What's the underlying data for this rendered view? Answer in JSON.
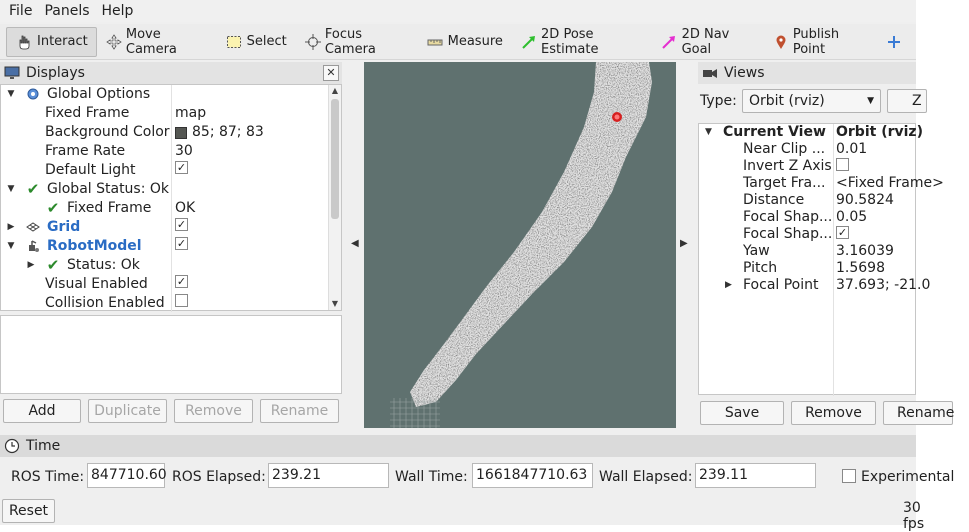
{
  "menu": [
    "File",
    "Panels",
    "Help"
  ],
  "toolbar": [
    {
      "label": "Interact",
      "icon": "hand-pointer-icon",
      "active": true
    },
    {
      "label": "Move Camera",
      "icon": "move-camera-icon",
      "active": false
    },
    {
      "label": "Select",
      "icon": "select-box-icon",
      "active": false
    },
    {
      "label": "Focus Camera",
      "icon": "focus-camera-icon",
      "active": false
    },
    {
      "label": "Measure",
      "icon": "ruler-icon",
      "active": false
    },
    {
      "label": "2D Pose Estimate",
      "icon": "green-arrow-icon",
      "active": false
    },
    {
      "label": "2D Nav Goal",
      "icon": "magenta-arrow-icon",
      "active": false
    },
    {
      "label": "Publish Point",
      "icon": "map-pin-icon",
      "active": false
    }
  ],
  "displays": {
    "title": "Displays",
    "rows": [
      {
        "name": "Global Options",
        "value": ""
      },
      {
        "name": "Fixed Frame",
        "value": "map"
      },
      {
        "name": "Background Color",
        "value": "85; 87; 83"
      },
      {
        "name": "Frame Rate",
        "value": "30"
      },
      {
        "name": "Default Light",
        "value": ""
      },
      {
        "name": "Global Status: Ok",
        "value": ""
      },
      {
        "name": "Fixed Frame",
        "value": "OK"
      },
      {
        "name": "Grid",
        "value": ""
      },
      {
        "name": "RobotModel",
        "value": ""
      },
      {
        "name": "Status: Ok",
        "value": ""
      },
      {
        "name": "Visual Enabled",
        "value": ""
      },
      {
        "name": "Collision Enabled",
        "value": ""
      }
    ],
    "buttons": [
      "Add",
      "Duplicate",
      "Remove",
      "Rename"
    ]
  },
  "views": {
    "title": "Views",
    "type_label": "Type:",
    "type_value": "Orbit (rviz)",
    "zero_label": "Z",
    "rows": [
      {
        "name": "Current View",
        "value": "Orbit (rviz)"
      },
      {
        "name": "Near Clip ...",
        "value": "0.01"
      },
      {
        "name": "Invert Z Axis",
        "value": ""
      },
      {
        "name": "Target Fra...",
        "value": "<Fixed Frame>"
      },
      {
        "name": "Distance",
        "value": "90.5824"
      },
      {
        "name": "Focal Shap...",
        "value": "0.05"
      },
      {
        "name": "Focal Shap...",
        "value": ""
      },
      {
        "name": "Yaw",
        "value": "3.16039"
      },
      {
        "name": "Pitch",
        "value": "1.5698"
      },
      {
        "name": "Focal Point",
        "value": "37.693; -21.0"
      }
    ],
    "buttons": [
      "Save",
      "Remove",
      "Rename"
    ]
  },
  "time": {
    "title": "Time",
    "ros_time_label": "ROS Time:",
    "ros_time": "847710.60",
    "ros_elapsed_label": "ROS Elapsed:",
    "ros_elapsed": "239.21",
    "wall_time_label": "Wall Time:",
    "wall_time": "1661847710.63",
    "wall_elapsed_label": "Wall Elapsed:",
    "wall_elapsed": "239.11",
    "experimental_label": "Experimental",
    "reset_label": "Reset",
    "fps": "30 fps"
  },
  "colors": {
    "render_background": "#5f716f",
    "link_blue": "#2a6cc4",
    "ok_green": "#2c8a2c"
  }
}
